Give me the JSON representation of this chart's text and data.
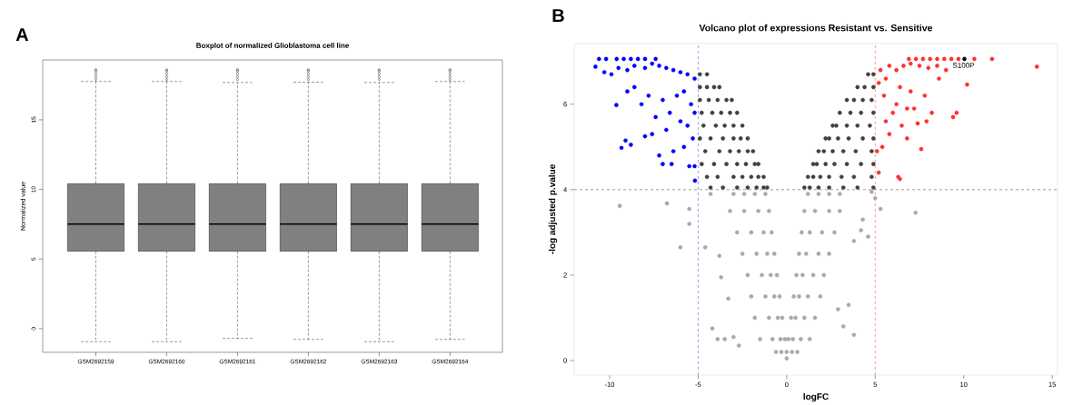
{
  "chart_data": [
    {
      "type": "box",
      "title": "Boxplot of normalized Glioblastoma cell line",
      "ylabel": "Normalized value",
      "categories": [
        "GSM2692159",
        "GSM2692160",
        "GSM2692161",
        "GSM2692162",
        "GSM2692163",
        "GSM2692164"
      ],
      "ylim": [
        -1.7,
        19.3
      ],
      "yticks": [
        0,
        5,
        10,
        15
      ],
      "series": [
        {
          "color": "#808080",
          "boxes": [
            {
              "low": -0.94,
              "q1": 5.56,
              "median": 7.51,
              "q3": 10.41,
              "high": 17.75,
              "outliers": [
                17.9,
                18.1,
                18.3,
                18.5,
                18.6
              ]
            },
            {
              "low": -0.94,
              "q1": 5.56,
              "median": 7.51,
              "q3": 10.41,
              "high": 17.75,
              "outliers": [
                17.9,
                18.1,
                18.3,
                18.5,
                18.6
              ]
            },
            {
              "low": -0.7,
              "q1": 5.56,
              "median": 7.51,
              "q3": 10.41,
              "high": 17.68,
              "outliers": [
                17.9,
                18.1,
                18.3,
                18.5,
                18.6
              ]
            },
            {
              "low": -0.77,
              "q1": 5.56,
              "median": 7.51,
              "q3": 10.41,
              "high": 17.7,
              "outliers": [
                17.9,
                18.1,
                18.3,
                18.5,
                18.6
              ]
            },
            {
              "low": -0.94,
              "q1": 5.56,
              "median": 7.51,
              "q3": 10.41,
              "high": 17.68,
              "outliers": [
                17.9,
                18.1,
                18.3,
                18.5,
                18.6
              ]
            },
            {
              "low": -0.77,
              "q1": 5.56,
              "median": 7.51,
              "q3": 10.41,
              "high": 17.75,
              "outliers": [
                17.9,
                18.1,
                18.3,
                18.5,
                18.6
              ]
            }
          ]
        }
      ],
      "annotations": [
        "A"
      ]
    },
    {
      "type": "scatter",
      "title": "Volcano plot of expressions Resistant vs. Sensitive",
      "xlabel": "logFC",
      "ylabel": "-log adjusted p.value",
      "xlim": [
        -12,
        15.3
      ],
      "ylim": [
        -0.34,
        7.42
      ],
      "xticks": [
        -10,
        -5,
        0,
        5,
        10,
        15
      ],
      "yticks": [
        0,
        2,
        4,
        6
      ],
      "marker": "circle",
      "series": [
        {
          "color": "#a9a9a9",
          "x": [
            -9.43,
            -6.76,
            -5.5,
            -5.5,
            -6.0,
            -4.6,
            -3.8,
            -3.7,
            -3.3,
            -4.2,
            -3.9,
            -3.5,
            -3.0,
            -2.7,
            7.28,
            5.3,
            5.0,
            4.3,
            4.2,
            4.6,
            3.8,
            3.5,
            3.2,
            3.8,
            2.9,
            -4.3,
            4.8,
            -3.0,
            -2.4,
            -1.8,
            -1.2,
            1.2,
            1.8,
            2.4,
            3.0,
            -3.2,
            -2.4,
            -1.6,
            -1.0,
            1.0,
            1.6,
            2.4,
            3.0,
            -2.8,
            -2.0,
            -1.3,
            -0.85,
            0.85,
            1.3,
            2.0,
            2.7,
            -2.5,
            -1.7,
            -1.1,
            -0.7,
            0.7,
            1.1,
            1.8,
            2.4,
            -2.2,
            -1.4,
            -0.9,
            -0.55,
            0.55,
            0.9,
            1.5,
            2.1,
            -2.0,
            -1.2,
            -0.7,
            -0.4,
            0.4,
            0.7,
            1.2,
            1.9,
            -1.8,
            -1.0,
            -0.5,
            -0.25,
            0.25,
            0.5,
            1.0,
            1.6,
            -1.5,
            -0.8,
            -0.35,
            -0.1,
            0.1,
            0.35,
            0.8,
            1.3,
            -0.6,
            -0.3,
            0,
            0.3,
            0.6,
            0
          ],
          "values": [
            3.62,
            3.68,
            3.55,
            3.2,
            2.65,
            2.65,
            2.45,
            1.95,
            1.45,
            0.75,
            0.5,
            0.5,
            0.55,
            0.35,
            3.46,
            3.55,
            3.8,
            3.3,
            3.05,
            2.9,
            2.8,
            1.3,
            0.8,
            0.6,
            1.2,
            3.9,
            3.95,
            3.9,
            3.9,
            3.9,
            3.9,
            3.9,
            3.9,
            3.9,
            3.9,
            3.5,
            3.5,
            3.5,
            3.5,
            3.5,
            3.5,
            3.5,
            3.5,
            3.0,
            3.0,
            3.0,
            3.0,
            3.0,
            3.0,
            3.0,
            3.0,
            2.5,
            2.5,
            2.5,
            2.5,
            2.5,
            2.5,
            2.5,
            2.5,
            2.0,
            2.0,
            2.0,
            2.0,
            2.0,
            2.0,
            2.0,
            2.0,
            1.5,
            1.5,
            1.5,
            1.5,
            1.5,
            1.5,
            1.5,
            1.5,
            1.0,
            1.0,
            1.0,
            1.0,
            1.0,
            1.0,
            1.0,
            1.0,
            0.5,
            0.5,
            0.5,
            0.5,
            0.5,
            0.5,
            0.5,
            0.5,
            0.2,
            0.2,
            0.2,
            0.2,
            0.2,
            0.05
          ]
        },
        {
          "color": "#404040",
          "x": [
            -4.9,
            -4.5,
            -4.9,
            -4.5,
            -4.1,
            -3.8,
            -4.9,
            -4.4,
            -3.9,
            -3.4,
            -3.1,
            -4.8,
            -4.2,
            -3.7,
            -3.2,
            -2.8,
            -4.7,
            -4.0,
            -3.5,
            -3.0,
            -2.5,
            -4.9,
            -4.3,
            -3.6,
            -3.0,
            -2.6,
            -2.2,
            -4.6,
            -3.8,
            -3.2,
            -2.7,
            -2.2,
            -1.9,
            -4.8,
            -4.1,
            -3.4,
            -2.8,
            -2.3,
            -1.8,
            -1.6,
            -4.5,
            -3.9,
            -3.0,
            -2.5,
            -2.0,
            -1.6,
            -1.3,
            -4.3,
            -3.6,
            -2.8,
            -2.2,
            -1.7,
            -1.3,
            -1.1,
            4.9,
            4.6,
            4.9,
            4.4,
            4.0,
            4.8,
            4.3,
            3.8,
            3.4,
            4.9,
            4.2,
            3.6,
            3.0,
            4.7,
            4.0,
            3.4,
            2.8,
            2.6,
            4.9,
            4.3,
            3.5,
            2.9,
            2.4,
            2.2,
            4.8,
            3.9,
            3.2,
            2.6,
            2.1,
            1.8,
            4.9,
            4.2,
            3.4,
            2.7,
            2.2,
            1.7,
            1.5,
            4.8,
            3.8,
            3.1,
            2.4,
            1.9,
            1.5,
            1.2,
            4.9,
            4.0,
            3.2,
            2.4,
            1.8,
            1.3,
            1.0
          ],
          "values": [
            6.7,
            6.7,
            6.4,
            6.4,
            6.4,
            6.4,
            6.1,
            6.1,
            6.1,
            6.1,
            6.1,
            5.8,
            5.8,
            5.8,
            5.8,
            5.8,
            5.5,
            5.5,
            5.5,
            5.5,
            5.5,
            5.2,
            5.2,
            5.2,
            5.2,
            5.2,
            5.2,
            4.9,
            4.9,
            4.9,
            4.9,
            4.9,
            4.9,
            4.6,
            4.6,
            4.6,
            4.6,
            4.6,
            4.6,
            4.6,
            4.3,
            4.3,
            4.3,
            4.3,
            4.3,
            4.3,
            4.3,
            4.05,
            4.05,
            4.05,
            4.05,
            4.05,
            4.05,
            4.05,
            6.7,
            6.7,
            6.4,
            6.4,
            6.4,
            6.1,
            6.1,
            6.1,
            6.1,
            5.8,
            5.8,
            5.8,
            5.8,
            5.5,
            5.5,
            5.5,
            5.5,
            5.5,
            5.2,
            5.2,
            5.2,
            5.2,
            5.2,
            5.2,
            4.9,
            4.9,
            4.9,
            4.9,
            4.9,
            4.9,
            4.6,
            4.6,
            4.6,
            4.6,
            4.6,
            4.6,
            4.6,
            4.3,
            4.3,
            4.3,
            4.3,
            4.3,
            4.3,
            4.3,
            4.05,
            4.05,
            4.05,
            4.05,
            4.05,
            4.05,
            4.05
          ]
        },
        {
          "color": "#0000ff",
          "x": [
            -10.6,
            -10.2,
            -9.6,
            -9.2,
            -8.8,
            -8.4,
            -8.0,
            -7.4,
            -10.8,
            -10.3,
            -9.9,
            -9.5,
            -9.0,
            -8.6,
            -8.0,
            -7.6,
            -7.2,
            -6.8,
            -6.4,
            -6.0,
            -5.6,
            -5.2,
            -9.62,
            -9.0,
            -8.6,
            -8.2,
            -7.8,
            -7.4,
            -7.0,
            -6.6,
            -6.2,
            -5.8,
            -5.4,
            -5.2,
            -5.6,
            -6.0,
            -6.8,
            -7.6,
            -8.0,
            -5.3,
            -5.8,
            -6.4,
            -9.33,
            -9.1,
            -8.8,
            -7.2,
            -6.5,
            -7.0,
            -5.5,
            -5.2,
            -5.18
          ],
          "values": [
            7.06,
            7.06,
            7.06,
            7.06,
            7.06,
            7.06,
            7.06,
            7.06,
            6.88,
            6.75,
            6.7,
            6.85,
            6.8,
            6.9,
            6.85,
            6.95,
            6.9,
            6.85,
            6.8,
            6.75,
            6.7,
            6.6,
            5.98,
            6.3,
            6.4,
            6.0,
            6.2,
            5.7,
            6.1,
            5.8,
            6.2,
            6.3,
            6.0,
            5.8,
            5.5,
            5.6,
            5.4,
            5.3,
            5.25,
            5.2,
            5.0,
            4.9,
            4.98,
            5.15,
            5.05,
            4.8,
            4.6,
            4.6,
            4.55,
            4.55,
            4.21
          ]
        },
        {
          "color": "#ff3030",
          "x": [
            6.9,
            7.3,
            7.7,
            8.1,
            8.5,
            8.9,
            9.3,
            9.7,
            10.6,
            11.6,
            14.13,
            10.19,
            9.6,
            9.4,
            7.9,
            8.2,
            7.4,
            6.8,
            7.6,
            6.3,
            6.4,
            5.2,
            5.1,
            5.4,
            5.8,
            6.0,
            5.5,
            5.2,
            5.3,
            5.8,
            6.2,
            6.6,
            7.0,
            7.5,
            8.0,
            8.5,
            9.0,
            5.6,
            6.4,
            7.0,
            7.8,
            8.6,
            6.2,
            6.8,
            5.6,
            6.5,
            7.2
          ],
          "values": [
            7.06,
            7.06,
            7.06,
            7.06,
            7.06,
            7.06,
            7.06,
            7.06,
            7.06,
            7.06,
            6.88,
            6.46,
            5.8,
            5.7,
            5.6,
            5.8,
            5.55,
            5.2,
            4.95,
            4.3,
            4.25,
            4.4,
            4.9,
            5.0,
            5.3,
            5.8,
            6.2,
            6.5,
            6.8,
            6.9,
            6.8,
            6.9,
            6.95,
            6.9,
            6.85,
            6.9,
            6.8,
            6.6,
            6.4,
            6.3,
            6.2,
            6.6,
            6.0,
            5.9,
            5.6,
            5.5,
            5.9
          ]
        },
        {
          "color": "#000000",
          "x": [
            10.04
          ],
          "values": [
            7.06
          ]
        }
      ],
      "ref_lines": [
        {
          "axis": "x",
          "value": -5,
          "color": "#0000ff",
          "line_style": "dashed"
        },
        {
          "axis": "x",
          "value": 5,
          "color": "#ff0000",
          "line_style": "dashed"
        },
        {
          "axis": "y",
          "value": 4,
          "color": "#000000",
          "line_style": "dashed"
        }
      ],
      "annotations": [
        "B",
        {
          "text": "S100P",
          "x": 10.04,
          "y": 7.06
        }
      ]
    }
  ]
}
